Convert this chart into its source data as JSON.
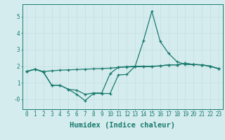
{
  "title": "",
  "xlabel": "Humidex (Indice chaleur)",
  "bg_color": "#d4ecee",
  "line_color": "#1a7a6e",
  "grid_color": "#c8dfe0",
  "xlim": [
    -0.5,
    23.5
  ],
  "ylim": [
    -0.6,
    5.75
  ],
  "yticks": [
    0,
    1,
    2,
    3,
    4,
    5
  ],
  "ytick_labels": [
    "-0",
    "1",
    "2",
    "3",
    "4",
    "5"
  ],
  "xticks": [
    0,
    1,
    2,
    3,
    4,
    5,
    6,
    7,
    8,
    9,
    10,
    11,
    12,
    13,
    14,
    15,
    16,
    17,
    18,
    19,
    20,
    21,
    22,
    23
  ],
  "line1_x": [
    0,
    1,
    2,
    3,
    4,
    5,
    6,
    7,
    8,
    9,
    10,
    11,
    12,
    13,
    14,
    15,
    16,
    17,
    18,
    19,
    20,
    21,
    22,
    23
  ],
  "line1_y": [
    1.68,
    1.82,
    1.68,
    1.72,
    1.76,
    1.78,
    1.8,
    1.82,
    1.84,
    1.86,
    1.88,
    1.93,
    1.95,
    1.97,
    1.97,
    1.98,
    2.02,
    2.08,
    2.08,
    2.18,
    2.1,
    2.08,
    2.0,
    1.85
  ],
  "line2_x": [
    0,
    1,
    2,
    3,
    4,
    5,
    6,
    7,
    8,
    9,
    10,
    11,
    12,
    13,
    14,
    15,
    16,
    17,
    18,
    19,
    20,
    21,
    22,
    23
  ],
  "line2_y": [
    1.68,
    1.82,
    1.65,
    0.85,
    0.85,
    0.6,
    0.55,
    0.3,
    0.38,
    0.38,
    1.55,
    1.95,
    1.97,
    2.0,
    3.55,
    5.32,
    3.5,
    2.78,
    2.28,
    2.1,
    2.1,
    2.08,
    2.0,
    1.85
  ],
  "line3_x": [
    0,
    1,
    2,
    3,
    4,
    5,
    6,
    7,
    8,
    9,
    10,
    11,
    12,
    13,
    14,
    15,
    16,
    17,
    18,
    19,
    20,
    21,
    22,
    23
  ],
  "line3_y": [
    1.68,
    1.82,
    1.65,
    0.85,
    0.85,
    0.6,
    0.3,
    -0.08,
    0.35,
    0.35,
    0.35,
    1.48,
    1.5,
    2.0,
    2.0,
    2.0,
    2.02,
    2.08,
    2.08,
    2.18,
    2.1,
    2.08,
    2.0,
    1.85
  ],
  "tick_fontsize": 5.5,
  "label_fontsize": 7.5
}
